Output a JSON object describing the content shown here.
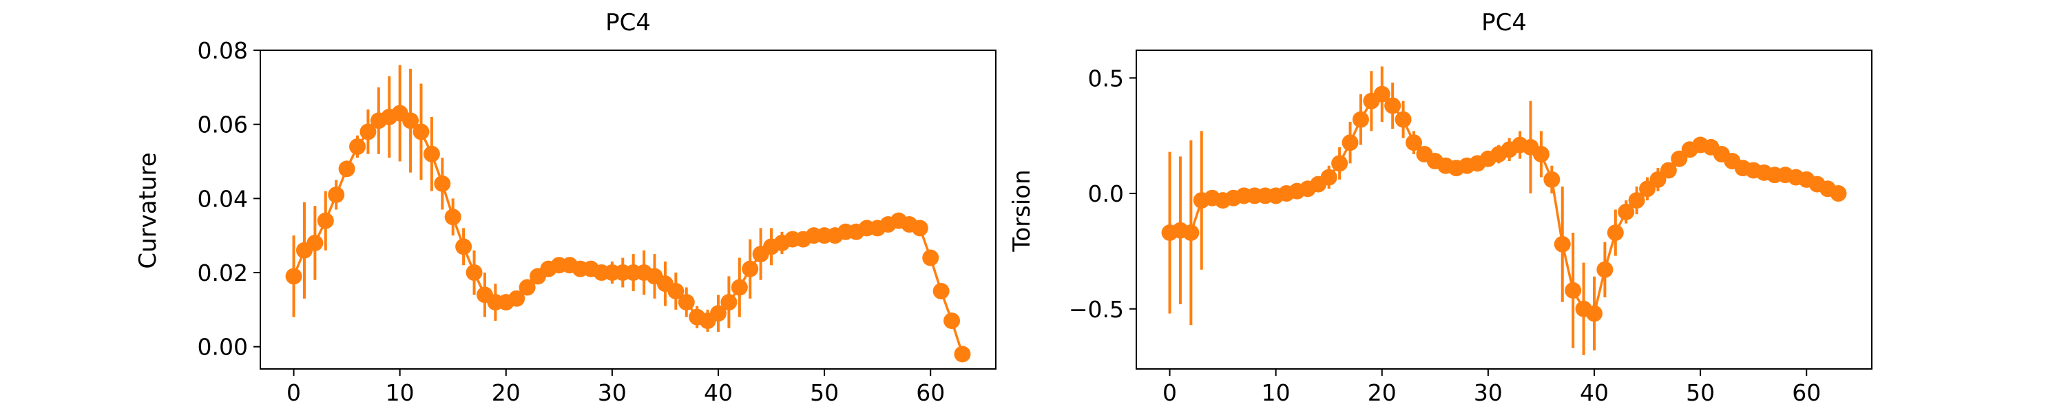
{
  "figure": {
    "background": "#ffffff"
  },
  "chart_data": [
    {
      "type": "line",
      "title": "PC4",
      "xlabel": "",
      "ylabel": "Curvature",
      "xlim": [
        -3.15,
        66.15
      ],
      "ylim": [
        -0.006,
        0.08
      ],
      "xticks": [
        0,
        10,
        20,
        30,
        40,
        50,
        60
      ],
      "xtick_labels": [
        "0",
        "10",
        "20",
        "30",
        "40",
        "50",
        "60"
      ],
      "yticks": [
        0.0,
        0.02,
        0.04,
        0.06,
        0.08
      ],
      "ytick_labels": [
        "0.00",
        "0.02",
        "0.04",
        "0.06",
        "0.08"
      ],
      "grid": false,
      "color": "#ff7f0e",
      "series": [
        {
          "x": [
            0,
            1,
            2,
            3,
            4,
            5,
            6,
            7,
            8,
            9,
            10,
            11,
            12,
            13,
            14,
            15,
            16,
            17,
            18,
            19,
            20,
            21,
            22,
            23,
            24,
            25,
            26,
            27,
            28,
            29,
            30,
            31,
            32,
            33,
            34,
            35,
            36,
            37,
            38,
            39,
            40,
            41,
            42,
            43,
            44,
            45,
            46,
            47,
            48,
            49,
            50,
            51,
            52,
            53,
            54,
            55,
            56,
            57,
            58,
            59,
            60,
            61,
            62,
            63
          ],
          "y": [
            0.019,
            0.026,
            0.028,
            0.034,
            0.041,
            0.048,
            0.054,
            0.058,
            0.061,
            0.062,
            0.063,
            0.061,
            0.058,
            0.052,
            0.044,
            0.035,
            0.027,
            0.02,
            0.014,
            0.012,
            0.012,
            0.013,
            0.016,
            0.019,
            0.021,
            0.022,
            0.022,
            0.021,
            0.021,
            0.02,
            0.02,
            0.02,
            0.02,
            0.02,
            0.019,
            0.017,
            0.015,
            0.012,
            0.008,
            0.007,
            0.009,
            0.012,
            0.016,
            0.021,
            0.025,
            0.027,
            0.028,
            0.029,
            0.029,
            0.03,
            0.03,
            0.03,
            0.031,
            0.031,
            0.032,
            0.032,
            0.033,
            0.034,
            0.033,
            0.032,
            0.024,
            0.015,
            0.007,
            -0.002
          ],
          "yerr": [
            0.011,
            0.013,
            0.01,
            0.008,
            0.004,
            0.002,
            0.003,
            0.006,
            0.009,
            0.011,
            0.013,
            0.014,
            0.013,
            0.01,
            0.007,
            0.005,
            0.005,
            0.006,
            0.006,
            0.005,
            0.002,
            0.002,
            0.002,
            0.002,
            0.002,
            0.002,
            0.002,
            0.002,
            0.002,
            0.002,
            0.003,
            0.004,
            0.005,
            0.006,
            0.006,
            0.006,
            0.005,
            0.004,
            0.003,
            0.003,
            0.005,
            0.007,
            0.008,
            0.008,
            0.007,
            0.005,
            0.003,
            0.002,
            0.001,
            0.001,
            0.001,
            0.001,
            0.001,
            0.001,
            0.001,
            0.001,
            0.001,
            0.001,
            0.001,
            0.001,
            0.001,
            0.001,
            0.001,
            0.001
          ]
        }
      ]
    },
    {
      "type": "line",
      "title": "PC4",
      "xlabel": "",
      "ylabel": "Torsion",
      "xlim": [
        -3.15,
        66.15
      ],
      "ylim": [
        -0.76,
        0.62
      ],
      "xticks": [
        0,
        10,
        20,
        30,
        40,
        50,
        60
      ],
      "xtick_labels": [
        "0",
        "10",
        "20",
        "30",
        "40",
        "50",
        "60"
      ],
      "yticks": [
        -0.5,
        0.0,
        0.5
      ],
      "ytick_labels": [
        "−0.5",
        "0.0",
        "0.5"
      ],
      "grid": false,
      "color": "#ff7f0e",
      "series": [
        {
          "x": [
            0,
            1,
            2,
            3,
            4,
            5,
            6,
            7,
            8,
            9,
            10,
            11,
            12,
            13,
            14,
            15,
            16,
            17,
            18,
            19,
            20,
            21,
            22,
            23,
            24,
            25,
            26,
            27,
            28,
            29,
            30,
            31,
            32,
            33,
            34,
            35,
            36,
            37,
            38,
            39,
            40,
            41,
            42,
            43,
            44,
            45,
            46,
            47,
            48,
            49,
            50,
            51,
            52,
            53,
            54,
            55,
            56,
            57,
            58,
            59,
            60,
            61,
            62,
            63
          ],
          "y": [
            -0.17,
            -0.16,
            -0.17,
            -0.03,
            -0.02,
            -0.03,
            -0.02,
            -0.01,
            -0.01,
            -0.01,
            -0.01,
            0.0,
            0.01,
            0.02,
            0.04,
            0.07,
            0.13,
            0.22,
            0.32,
            0.4,
            0.43,
            0.38,
            0.32,
            0.22,
            0.17,
            0.14,
            0.12,
            0.11,
            0.12,
            0.13,
            0.15,
            0.17,
            0.19,
            0.21,
            0.2,
            0.17,
            0.06,
            -0.22,
            -0.42,
            -0.5,
            -0.52,
            -0.33,
            -0.17,
            -0.08,
            -0.03,
            0.02,
            0.06,
            0.1,
            0.15,
            0.19,
            0.21,
            0.2,
            0.17,
            0.14,
            0.11,
            0.1,
            0.09,
            0.08,
            0.08,
            0.07,
            0.06,
            0.04,
            0.02,
            0.0
          ],
          "yerr": [
            0.35,
            0.32,
            0.4,
            0.3,
            0.03,
            0.02,
            0.02,
            0.01,
            0.01,
            0.01,
            0.01,
            0.01,
            0.01,
            0.02,
            0.02,
            0.05,
            0.07,
            0.09,
            0.11,
            0.13,
            0.12,
            0.1,
            0.08,
            0.05,
            0.03,
            0.02,
            0.02,
            0.02,
            0.02,
            0.02,
            0.03,
            0.04,
            0.05,
            0.06,
            0.2,
            0.1,
            0.06,
            0.25,
            0.25,
            0.2,
            0.16,
            0.12,
            0.1,
            0.05,
            0.06,
            0.05,
            0.05,
            0.03,
            0.03,
            0.02,
            0.02,
            0.01,
            0.01,
            0.01,
            0.01,
            0.01,
            0.01,
            0.01,
            0.01,
            0.01,
            0.01,
            0.01,
            0.01,
            0.01
          ]
        }
      ]
    }
  ]
}
